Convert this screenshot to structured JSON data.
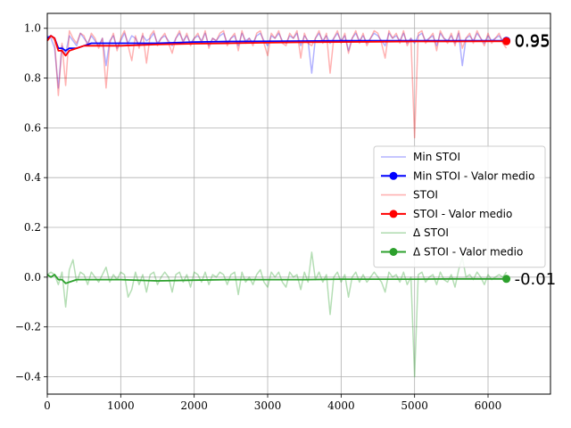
{
  "chart_data": {
    "type": "line",
    "title": "",
    "xlabel": "",
    "ylabel": "",
    "xlim": [
      0,
      6850
    ],
    "ylim": [
      -0.47,
      1.06
    ],
    "xticks": [
      0,
      1000,
      2000,
      3000,
      4000,
      5000,
      6000
    ],
    "yticks": [
      -0.4,
      -0.2,
      0.0,
      0.2,
      0.4,
      0.6,
      0.8,
      1.0
    ],
    "xtick_labels": [
      "0",
      "1000",
      "2000",
      "3000",
      "4000",
      "5000",
      "6000"
    ],
    "ytick_labels": [
      "−0.4",
      "−0.2",
      "0.0",
      "0.2",
      "0.4",
      "0.6",
      "0.8",
      "1.0"
    ],
    "grid": true,
    "legend_position": "center-right",
    "series": [
      {
        "name": "Min STOI",
        "color": "#0000ff",
        "alpha": 0.3,
        "marker": false,
        "x": [
          0,
          50,
          100,
          150,
          200,
          250,
          300,
          350,
          400,
          450,
          500,
          550,
          600,
          650,
          700,
          750,
          800,
          850,
          900,
          950,
          1000,
          1050,
          1100,
          1150,
          1200,
          1250,
          1300,
          1350,
          1400,
          1450,
          1500,
          1550,
          1600,
          1650,
          1700,
          1750,
          1800,
          1850,
          1900,
          1950,
          2000,
          2050,
          2100,
          2150,
          2200,
          2250,
          2300,
          2350,
          2400,
          2450,
          2500,
          2550,
          2600,
          2650,
          2700,
          2750,
          2800,
          2850,
          2900,
          2950,
          3000,
          3050,
          3100,
          3150,
          3200,
          3250,
          3300,
          3350,
          3400,
          3450,
          3500,
          3550,
          3600,
          3650,
          3700,
          3750,
          3800,
          3850,
          3900,
          3950,
          4000,
          4050,
          4100,
          4150,
          4200,
          4250,
          4300,
          4350,
          4400,
          4450,
          4500,
          4550,
          4600,
          4650,
          4700,
          4750,
          4800,
          4850,
          4900,
          4950,
          5000,
          5050,
          5100,
          5150,
          5200,
          5250,
          5300,
          5350,
          5400,
          5450,
          5500,
          5550,
          5600,
          5650,
          5700,
          5750,
          5800,
          5850,
          5900,
          5950,
          6000,
          6050,
          6100,
          6150,
          6200,
          6250
        ],
        "values": [
          0.97,
          0.96,
          0.92,
          0.76,
          0.93,
          0.9,
          0.97,
          0.95,
          0.93,
          0.98,
          0.96,
          0.94,
          0.97,
          0.95,
          0.93,
          0.96,
          0.85,
          0.95,
          0.97,
          0.92,
          0.95,
          0.98,
          0.94,
          0.97,
          0.96,
          0.93,
          0.97,
          0.95,
          0.96,
          0.98,
          0.94,
          0.96,
          0.97,
          0.95,
          0.93,
          0.96,
          0.98,
          0.95,
          0.97,
          0.94,
          0.96,
          0.97,
          0.95,
          0.98,
          0.93,
          0.96,
          0.95,
          0.97,
          0.98,
          0.94,
          0.96,
          0.97,
          0.93,
          0.98,
          0.95,
          0.96,
          0.94,
          0.97,
          0.98,
          0.95,
          0.93,
          0.97,
          0.96,
          0.98,
          0.95,
          0.94,
          0.97,
          0.96,
          0.98,
          0.93,
          0.97,
          0.95,
          0.82,
          0.96,
          0.98,
          0.95,
          0.97,
          0.94,
          0.96,
          0.98,
          0.95,
          0.97,
          0.91,
          0.96,
          0.98,
          0.95,
          0.97,
          0.94,
          0.96,
          0.98,
          0.97,
          0.95,
          0.93,
          0.98,
          0.96,
          0.97,
          0.95,
          0.98,
          0.94,
          0.96,
          0.94,
          0.97,
          0.98,
          0.95,
          0.96,
          0.97,
          0.93,
          0.98,
          0.96,
          0.95,
          0.97,
          0.94,
          0.98,
          0.85,
          0.96,
          0.97,
          0.95,
          0.98,
          0.96,
          0.94,
          0.97,
          0.95,
          0.96,
          0.97,
          0.95,
          0.94
        ]
      },
      {
        "name": "Min STOI - Valor medio",
        "color": "#0000ff",
        "alpha": 1.0,
        "marker": true,
        "x": [
          0,
          50,
          100,
          150,
          200,
          250,
          300,
          400,
          500,
          600,
          800,
          1000,
          1500,
          2000,
          2500,
          3000,
          3500,
          4000,
          4500,
          5000,
          5500,
          6000,
          6250
        ],
        "values": [
          0.96,
          0.97,
          0.96,
          0.92,
          0.92,
          0.91,
          0.92,
          0.92,
          0.93,
          0.94,
          0.94,
          0.94,
          0.94,
          0.945,
          0.947,
          0.948,
          0.949,
          0.95,
          0.95,
          0.95,
          0.95,
          0.95,
          0.95
        ]
      },
      {
        "name": "STOI",
        "color": "#ff0000",
        "alpha": 0.3,
        "marker": false,
        "x": [
          0,
          50,
          100,
          150,
          200,
          250,
          300,
          350,
          400,
          450,
          500,
          550,
          600,
          650,
          700,
          750,
          800,
          850,
          900,
          950,
          1000,
          1050,
          1100,
          1150,
          1200,
          1250,
          1300,
          1350,
          1400,
          1450,
          1500,
          1550,
          1600,
          1650,
          1700,
          1750,
          1800,
          1850,
          1900,
          1950,
          2000,
          2050,
          2100,
          2150,
          2200,
          2250,
          2300,
          2350,
          2400,
          2450,
          2500,
          2550,
          2600,
          2650,
          2700,
          2750,
          2800,
          2850,
          2900,
          2950,
          3000,
          3050,
          3100,
          3150,
          3200,
          3250,
          3300,
          3350,
          3400,
          3450,
          3500,
          3550,
          3600,
          3650,
          3700,
          3750,
          3800,
          3850,
          3900,
          3950,
          4000,
          4050,
          4100,
          4150,
          4200,
          4250,
          4300,
          4350,
          4400,
          4450,
          4500,
          4550,
          4600,
          4650,
          4700,
          4750,
          4800,
          4850,
          4900,
          4950,
          5000,
          5050,
          5100,
          5150,
          5200,
          5250,
          5300,
          5350,
          5400,
          5450,
          5500,
          5550,
          5600,
          5650,
          5700,
          5750,
          5800,
          5850,
          5900,
          5950,
          6000,
          6050,
          6100,
          6150,
          6200,
          6250
        ],
        "values": [
          0.96,
          0.97,
          0.95,
          0.73,
          0.94,
          0.77,
          0.99,
          0.96,
          0.94,
          0.98,
          0.97,
          0.93,
          0.98,
          0.96,
          0.92,
          0.96,
          0.76,
          0.94,
          0.98,
          0.91,
          0.96,
          0.99,
          0.93,
          0.87,
          0.97,
          0.92,
          0.98,
          0.86,
          0.97,
          0.99,
          0.93,
          0.96,
          0.98,
          0.94,
          0.9,
          0.96,
          0.99,
          0.94,
          0.98,
          0.93,
          0.96,
          0.98,
          0.94,
          0.99,
          0.92,
          0.96,
          0.95,
          0.98,
          0.99,
          0.93,
          0.96,
          0.98,
          0.91,
          0.99,
          0.94,
          0.96,
          0.93,
          0.98,
          0.99,
          0.94,
          0.89,
          0.98,
          0.96,
          0.99,
          0.94,
          0.93,
          0.98,
          0.96,
          0.99,
          0.88,
          0.98,
          0.94,
          0.93,
          0.96,
          0.99,
          0.94,
          0.98,
          0.82,
          0.96,
          0.99,
          0.94,
          0.98,
          0.9,
          0.96,
          0.99,
          0.94,
          0.98,
          0.93,
          0.96,
          0.99,
          0.98,
          0.94,
          0.88,
          0.99,
          0.96,
          0.98,
          0.94,
          0.99,
          0.93,
          0.96,
          0.56,
          0.98,
          0.99,
          0.94,
          0.96,
          0.98,
          0.91,
          0.99,
          0.96,
          0.94,
          0.98,
          0.93,
          0.99,
          0.92,
          0.96,
          0.98,
          0.94,
          0.99,
          0.96,
          0.93,
          0.98,
          0.94,
          0.96,
          0.98,
          0.94,
          0.92
        ]
      },
      {
        "name": "STOI - Valor medio",
        "color": "#ff0000",
        "alpha": 1.0,
        "marker": true,
        "x": [
          0,
          50,
          100,
          150,
          200,
          250,
          300,
          400,
          500,
          600,
          800,
          1000,
          1500,
          2000,
          2500,
          3000,
          3500,
          4000,
          4500,
          5000,
          5500,
          6000,
          6250
        ],
        "values": [
          0.95,
          0.97,
          0.96,
          0.91,
          0.91,
          0.89,
          0.91,
          0.92,
          0.93,
          0.93,
          0.93,
          0.93,
          0.935,
          0.938,
          0.94,
          0.942,
          0.944,
          0.945,
          0.946,
          0.947,
          0.947,
          0.948,
          0.948
        ]
      },
      {
        "name": "Δ STOI",
        "color": "#2ca02c",
        "alpha": 0.35,
        "marker": false,
        "x": [
          0,
          50,
          100,
          150,
          200,
          250,
          300,
          350,
          400,
          450,
          500,
          550,
          600,
          650,
          700,
          750,
          800,
          850,
          900,
          950,
          1000,
          1050,
          1100,
          1150,
          1200,
          1250,
          1300,
          1350,
          1400,
          1450,
          1500,
          1550,
          1600,
          1650,
          1700,
          1750,
          1800,
          1850,
          1900,
          1950,
          2000,
          2050,
          2100,
          2150,
          2200,
          2250,
          2300,
          2350,
          2400,
          2450,
          2500,
          2550,
          2600,
          2650,
          2700,
          2750,
          2800,
          2850,
          2900,
          2950,
          3000,
          3050,
          3100,
          3150,
          3200,
          3250,
          3300,
          3350,
          3400,
          3450,
          3500,
          3550,
          3600,
          3650,
          3700,
          3750,
          3800,
          3850,
          3900,
          3950,
          4000,
          4050,
          4100,
          4150,
          4200,
          4250,
          4300,
          4350,
          4400,
          4450,
          4500,
          4550,
          4600,
          4650,
          4700,
          4750,
          4800,
          4850,
          4900,
          4950,
          5000,
          5050,
          5100,
          5150,
          5200,
          5250,
          5300,
          5350,
          5400,
          5450,
          5500,
          5550,
          5600,
          5650,
          5700,
          5750,
          5800,
          5850,
          5900,
          5950,
          6000,
          6050,
          6100,
          6150,
          6200,
          6250
        ],
        "values": [
          0.01,
          0.02,
          0.01,
          -0.03,
          0.02,
          -0.12,
          0.03,
          0.07,
          -0.02,
          0.02,
          0.01,
          -0.03,
          0.02,
          0.0,
          -0.02,
          0.01,
          0.04,
          -0.02,
          0.01,
          -0.01,
          0.02,
          0.01,
          -0.08,
          -0.05,
          0.02,
          -0.03,
          0.01,
          -0.06,
          0.01,
          0.02,
          -0.03,
          0.0,
          0.02,
          0.0,
          -0.06,
          0.01,
          0.02,
          -0.02,
          0.01,
          -0.04,
          0.02,
          0.01,
          -0.02,
          0.02,
          -0.03,
          0.01,
          0.0,
          0.02,
          0.01,
          -0.03,
          0.01,
          0.02,
          -0.07,
          0.02,
          -0.02,
          0.0,
          -0.03,
          0.01,
          0.03,
          -0.02,
          -0.04,
          0.02,
          0.0,
          0.02,
          -0.02,
          -0.04,
          0.02,
          0.0,
          0.01,
          -0.05,
          0.02,
          -0.02,
          0.1,
          -0.01,
          0.02,
          -0.02,
          0.01,
          -0.15,
          0.0,
          0.02,
          -0.02,
          0.01,
          -0.08,
          0.0,
          0.02,
          -0.02,
          0.01,
          -0.02,
          0.0,
          0.02,
          0.0,
          -0.02,
          -0.06,
          0.02,
          0.0,
          0.01,
          -0.02,
          0.02,
          -0.03,
          0.0,
          -0.4,
          0.01,
          0.02,
          -0.02,
          0.0,
          0.01,
          -0.03,
          0.02,
          -0.01,
          -0.02,
          0.01,
          -0.04,
          0.03,
          0.08,
          0.0,
          0.01,
          -0.01,
          0.02,
          0.0,
          -0.03,
          0.01,
          -0.01,
          0.0,
          0.01,
          0.0,
          0.02
        ]
      },
      {
        "name": "Δ STOI - Valor medio",
        "color": "#2ca02c",
        "alpha": 1.0,
        "marker": true,
        "x": [
          0,
          50,
          100,
          150,
          200,
          250,
          300,
          400,
          500,
          600,
          800,
          1000,
          1500,
          2000,
          2500,
          3000,
          3500,
          4000,
          4500,
          5000,
          5500,
          6000,
          6250
        ],
        "values": [
          0.01,
          0.0,
          0.01,
          -0.01,
          -0.01,
          -0.025,
          -0.02,
          -0.01,
          -0.01,
          -0.01,
          -0.01,
          -0.01,
          -0.015,
          -0.012,
          -0.01,
          -0.01,
          -0.01,
          -0.008,
          -0.008,
          -0.008,
          -0.007,
          -0.007,
          -0.007
        ]
      }
    ],
    "end_labels": [
      {
        "text": "0.95",
        "series": 1
      },
      {
        "text": "0.95",
        "series": 3
      },
      {
        "text": "-0.01",
        "series": 5
      }
    ]
  }
}
